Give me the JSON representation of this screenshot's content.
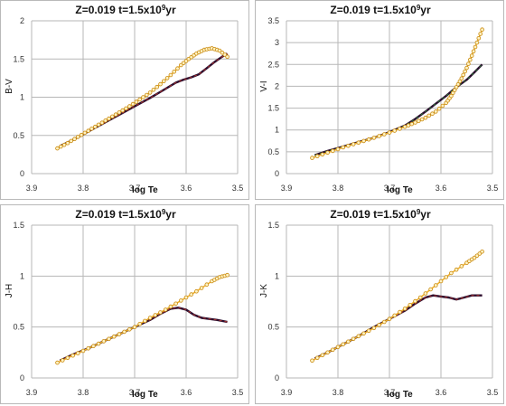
{
  "colors": {
    "gridline": "#b7b7b7",
    "panel_border": "#b9b9b9",
    "track_dark": "#2b0d2e",
    "track_accent": "#c0392b",
    "track_green": "#2e8b3a",
    "track_orange": "#f2b12a",
    "marker_edge": "#c98a10"
  },
  "chart_data": [
    {
      "type": "line",
      "title": "Z=0.019   t=1.5x10",
      "title_exp": "9",
      "title_unit": "yr",
      "xlabel": "log Te",
      "ylabel": "B-V",
      "xlim": [
        3.9,
        3.5
      ],
      "ylim": [
        0,
        2
      ],
      "xticks": [
        "3.9",
        "3.8",
        "3.7",
        "3.6",
        "3.5"
      ],
      "yticks": [
        "0",
        "0.5",
        "1",
        "1.5",
        "2"
      ],
      "grid": true,
      "series": [
        {
          "x": [
            3.845,
            3.82,
            3.79,
            3.76,
            3.73,
            3.7,
            3.67,
            3.65,
            3.62,
            3.605,
            3.59,
            3.575,
            3.56,
            3.545,
            3.53,
            3.52
          ],
          "y": [
            0.36,
            0.44,
            0.55,
            0.66,
            0.77,
            0.88,
            0.99,
            1.07,
            1.19,
            1.23,
            1.26,
            1.3,
            1.38,
            1.46,
            1.53,
            1.57
          ]
        },
        {
          "x": [
            3.85,
            3.83,
            3.81,
            3.79,
            3.77,
            3.75,
            3.73,
            3.71,
            3.69,
            3.67,
            3.65,
            3.63,
            3.61,
            3.595,
            3.58,
            3.565,
            3.55,
            3.535,
            3.52
          ],
          "y": [
            0.33,
            0.4,
            0.48,
            0.56,
            0.64,
            0.72,
            0.8,
            0.88,
            0.97,
            1.06,
            1.17,
            1.29,
            1.42,
            1.5,
            1.57,
            1.62,
            1.64,
            1.61,
            1.53
          ]
        }
      ]
    },
    {
      "type": "line",
      "title": "Z=0.019   t=1.5x10",
      "title_exp": "9",
      "title_unit": "yr",
      "xlabel": "log Te",
      "ylabel": "V-I",
      "xlim": [
        3.9,
        3.5
      ],
      "ylim": [
        0,
        3.5
      ],
      "xticks": [
        "3.9",
        "3.8",
        "3.7",
        "3.6",
        "3.5"
      ],
      "yticks": [
        "0",
        "0.5",
        "1",
        "1.5",
        "2",
        "2.5",
        "3",
        "3.5"
      ],
      "grid": true,
      "series": [
        {
          "x": [
            3.845,
            3.82,
            3.79,
            3.76,
            3.73,
            3.7,
            3.67,
            3.65,
            3.63,
            3.61,
            3.59,
            3.57,
            3.55,
            3.535,
            3.52
          ],
          "y": [
            0.42,
            0.52,
            0.62,
            0.72,
            0.82,
            0.95,
            1.1,
            1.25,
            1.42,
            1.6,
            1.78,
            1.98,
            2.15,
            2.32,
            2.5
          ]
        },
        {
          "x": [
            3.85,
            3.82,
            3.79,
            3.76,
            3.73,
            3.7,
            3.67,
            3.65,
            3.63,
            3.61,
            3.59,
            3.58,
            3.57,
            3.56,
            3.55,
            3.54,
            3.53,
            3.52
          ],
          "y": [
            0.36,
            0.48,
            0.6,
            0.71,
            0.82,
            0.94,
            1.07,
            1.17,
            1.28,
            1.42,
            1.62,
            1.78,
            1.98,
            2.18,
            2.42,
            2.7,
            3.0,
            3.3
          ]
        }
      ]
    },
    {
      "type": "line",
      "title": "Z=0.019   t=1.5x10",
      "title_exp": "9",
      "title_unit": "yr",
      "xlabel": "log Te",
      "ylabel": "J-H",
      "xlim": [
        3.9,
        3.5
      ],
      "ylim": [
        0,
        1.5
      ],
      "xticks": [
        "3.9",
        "3.8",
        "3.7",
        "3.6",
        "3.5"
      ],
      "yticks": [
        "0",
        "0.5",
        "1",
        "1.5"
      ],
      "grid": true,
      "series": [
        {
          "x": [
            3.845,
            3.82,
            3.79,
            3.76,
            3.73,
            3.7,
            3.67,
            3.65,
            3.63,
            3.615,
            3.6,
            3.585,
            3.57,
            3.555,
            3.54,
            3.52
          ],
          "y": [
            0.17,
            0.23,
            0.29,
            0.36,
            0.43,
            0.5,
            0.57,
            0.63,
            0.68,
            0.69,
            0.67,
            0.62,
            0.59,
            0.58,
            0.57,
            0.55
          ]
        },
        {
          "x": [
            3.85,
            3.82,
            3.79,
            3.76,
            3.73,
            3.7,
            3.67,
            3.64,
            3.61,
            3.58,
            3.55,
            3.535,
            3.52
          ],
          "y": [
            0.15,
            0.22,
            0.29,
            0.36,
            0.43,
            0.5,
            0.59,
            0.67,
            0.76,
            0.85,
            0.95,
            0.99,
            1.01
          ]
        }
      ]
    },
    {
      "type": "line",
      "title": "Z=0.019   t=1.5x10",
      "title_exp": "9",
      "title_unit": "yr",
      "xlabel": "log Te",
      "ylabel": "J-K",
      "xlim": [
        3.9,
        3.5
      ],
      "ylim": [
        0,
        1.5
      ],
      "xticks": [
        "3.9",
        "3.8",
        "3.7",
        "3.6",
        "3.5"
      ],
      "yticks": [
        "0",
        "0.5",
        "1",
        "1.5"
      ],
      "grid": true,
      "series": [
        {
          "x": [
            3.845,
            3.82,
            3.79,
            3.76,
            3.73,
            3.7,
            3.67,
            3.65,
            3.63,
            3.615,
            3.6,
            3.585,
            3.57,
            3.555,
            3.54,
            3.52
          ],
          "y": [
            0.19,
            0.25,
            0.33,
            0.41,
            0.5,
            0.58,
            0.66,
            0.73,
            0.79,
            0.81,
            0.8,
            0.79,
            0.77,
            0.79,
            0.81,
            0.81
          ]
        },
        {
          "x": [
            3.85,
            3.82,
            3.79,
            3.76,
            3.73,
            3.7,
            3.67,
            3.64,
            3.61,
            3.58,
            3.55,
            3.535,
            3.52
          ],
          "y": [
            0.17,
            0.25,
            0.33,
            0.41,
            0.49,
            0.58,
            0.68,
            0.79,
            0.91,
            1.03,
            1.13,
            1.18,
            1.24
          ]
        }
      ]
    }
  ]
}
